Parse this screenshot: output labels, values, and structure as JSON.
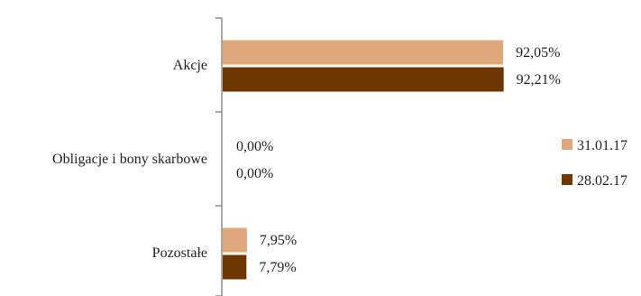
{
  "chart_data": {
    "type": "bar",
    "orientation": "horizontal",
    "categories": [
      "Akcje",
      "Obligacje i bony skarbowe",
      "Pozostałe"
    ],
    "series": [
      {
        "name": "31.01.17",
        "values": [
          92.05,
          0.0,
          7.95
        ],
        "labels": [
          "92,05%",
          "0,00%",
          "7,95%"
        ],
        "color": "#dea87a"
      },
      {
        "name": "28.02.17",
        "values": [
          92.21,
          0.0,
          7.79
        ],
        "labels": [
          "92,21%",
          "0,00%",
          "7,79%"
        ],
        "color": "#6e3600"
      }
    ],
    "xlim": [
      0,
      100
    ],
    "grid": false,
    "legend": "right"
  }
}
